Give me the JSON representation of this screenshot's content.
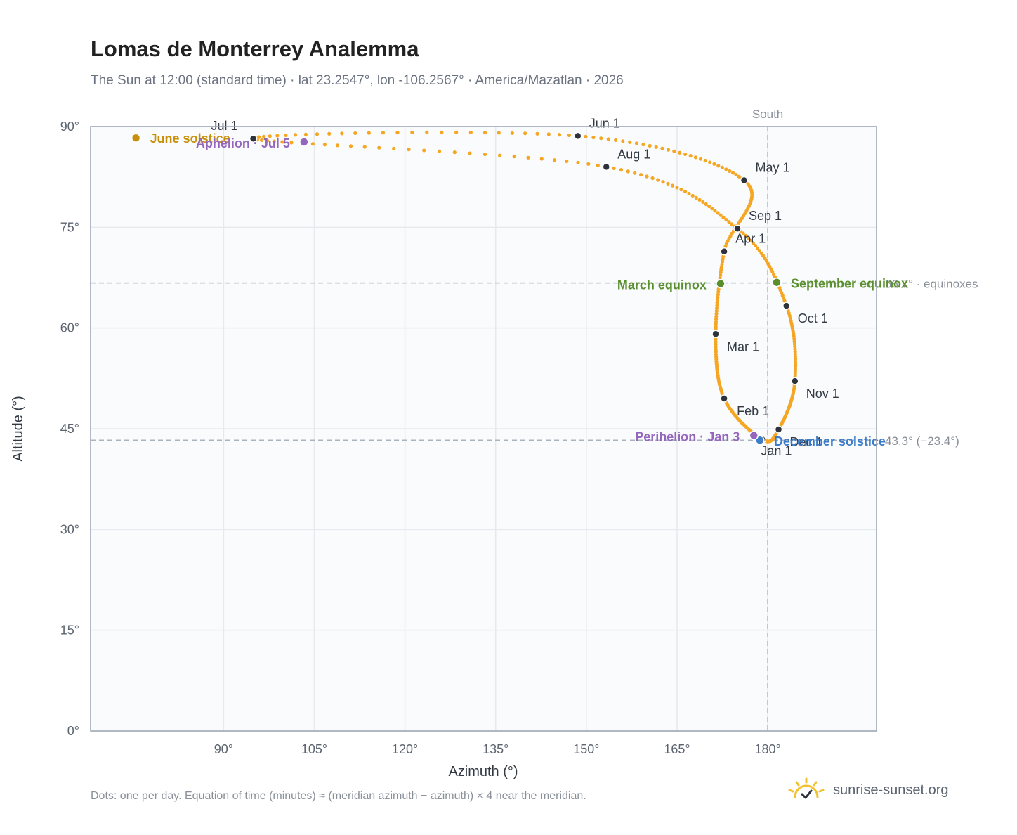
{
  "title": "Lomas de Monterrey Analemma",
  "subtitle": "The Sun at 12:00 (standard time) · lat 23.2547°, lon -106.2567° · America/Mazatlan · 2026",
  "footnote": "Dots: one per day. Equation of time (minutes) ≈ (meridian azimuth − azimuth) × 4 near the meridian.",
  "brand": {
    "name": "sunrise-sunset.org",
    "icon": "sun-logo-icon"
  },
  "colors": {
    "curve": "#f5a623",
    "month_marker": "#2d323b",
    "equinox": "#5a8f2e",
    "june_solstice": "#c8900a",
    "december_solstice": "#3d7cc9",
    "apsis": "#9467bd",
    "grid": "#e6e9ee",
    "frame": "#9aa4b2",
    "plot_bg": "#f9fbfd"
  },
  "chart_data": {
    "type": "scatter",
    "xlabel": "Azimuth (°)",
    "ylabel": "Altitude (°)",
    "xlim": [
      68,
      198
    ],
    "ylim": [
      0,
      90
    ],
    "x_ticks": [
      90,
      105,
      120,
      135,
      150,
      165,
      180
    ],
    "x_tick_labels": [
      "90°",
      "105°",
      "120°",
      "135°",
      "150°",
      "165°",
      "180°"
    ],
    "y_ticks": [
      0,
      15,
      30,
      45,
      60,
      75,
      90
    ],
    "y_tick_labels": [
      "0°",
      "15°",
      "30°",
      "45°",
      "60°",
      "75°",
      "90°"
    ],
    "grid": true,
    "meridian": {
      "azimuth": 180,
      "label": "South"
    },
    "reference_lines": [
      {
        "altitude": 66.7,
        "label": "66.7° · equinoxes"
      },
      {
        "altitude": 43.3,
        "label": "43.3° (−23.4°)"
      }
    ],
    "months": [
      {
        "label": "Jan 1",
        "az": 179.1,
        "alt": 43.4
      },
      {
        "label": "Feb 1",
        "az": 172.8,
        "alt": 49.5
      },
      {
        "label": "Mar 1",
        "az": 171.4,
        "alt": 59.1
      },
      {
        "label": "Apr 1",
        "az": 172.8,
        "alt": 71.4
      },
      {
        "label": "May 1",
        "az": 176.1,
        "alt": 82.0
      },
      {
        "label": "Jun 1",
        "az": 148.6,
        "alt": 88.6
      },
      {
        "label": "Jul 1",
        "az": 94.9,
        "alt": 88.2
      },
      {
        "label": "Aug 1",
        "az": 153.3,
        "alt": 84.0
      },
      {
        "label": "Sep 1",
        "az": 175.0,
        "alt": 74.8
      },
      {
        "label": "Oct 1",
        "az": 183.1,
        "alt": 63.3
      },
      {
        "label": "Nov 1",
        "az": 184.5,
        "alt": 52.1
      },
      {
        "label": "Dec 1",
        "az": 181.8,
        "alt": 44.9
      }
    ],
    "events": [
      {
        "label": "March equinox",
        "az": 172.2,
        "alt": 66.6,
        "kind": "equinox"
      },
      {
        "label": "September equinox",
        "az": 181.5,
        "alt": 66.8,
        "kind": "equinox"
      },
      {
        "label": "June solstice",
        "az": 75.5,
        "alt": 88.3,
        "kind": "june_solstice"
      },
      {
        "label": "December solstice",
        "az": 178.7,
        "alt": 43.3,
        "kind": "december_solstice"
      },
      {
        "label": "Perihelion · Jan 3",
        "az": 177.7,
        "alt": 44.0,
        "kind": "apsis"
      },
      {
        "label": "Aphelion · Jul 5",
        "az": 103.3,
        "alt": 87.7,
        "kind": "apsis"
      }
    ]
  }
}
